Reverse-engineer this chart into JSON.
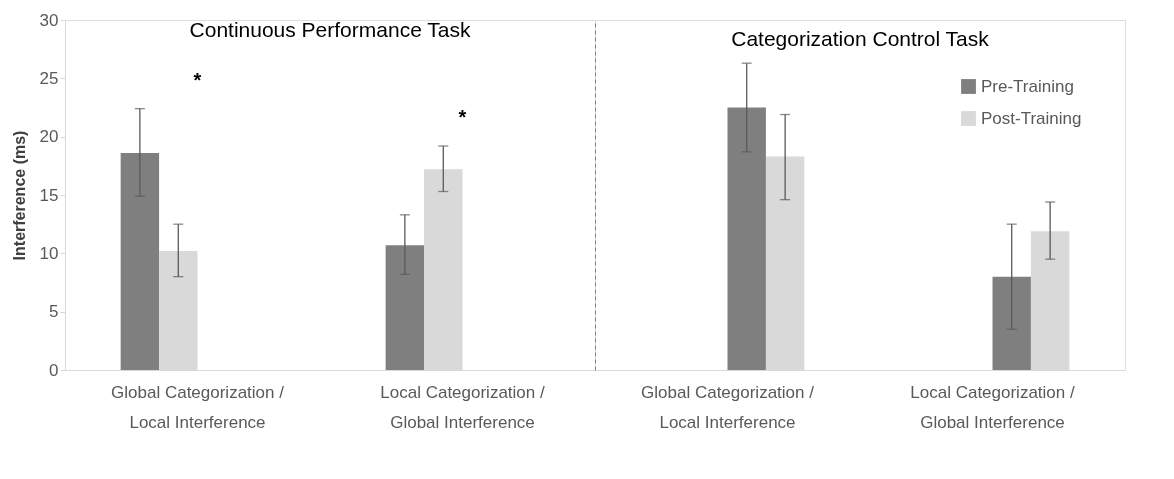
{
  "chart_data": [
    {
      "type": "bar",
      "title": "Continuous Performance Task",
      "ylabel": "Interference (ms)",
      "categories": [
        "Global Categorization /\nLocal Interference",
        "Local Categorization /\nGlobal Interference"
      ],
      "series": [
        {
          "name": "Pre-Training",
          "color": "#7f7f7f",
          "values": [
            18.6,
            10.7
          ],
          "errors": [
            [
              14.9,
              22.4
            ],
            [
              8.2,
              13.3
            ]
          ]
        },
        {
          "name": "Post-Training",
          "color": "#d9d9d9",
          "values": [
            10.2,
            17.2
          ],
          "errors": [
            [
              8.0,
              12.5
            ],
            [
              15.3,
              19.2
            ]
          ]
        }
      ],
      "annotations": [
        "*",
        "*"
      ],
      "ylim": [
        0,
        30
      ],
      "yticks": [
        0,
        5,
        10,
        15,
        20,
        25,
        30
      ],
      "grid": false,
      "legend": "top right"
    },
    {
      "type": "bar",
      "title": "Categorization Control Task",
      "categories": [
        "Global Categorization /\nLocal Interference",
        "Local Categorization /\nGlobal Interference"
      ],
      "series": [
        {
          "color": "#7f7f7f",
          "values": [
            22.5,
            8.0
          ],
          "errors": [
            [
              18.7,
              26.3
            ],
            [
              3.5,
              12.5
            ]
          ]
        },
        {
          "color": "#d9d9d9",
          "values": [
            18.3,
            11.9
          ],
          "errors": [
            [
              14.6,
              21.9
            ],
            [
              9.5,
              14.4
            ]
          ]
        }
      ],
      "ylim": [
        0,
        30
      ],
      "yticks": [
        0,
        5,
        10,
        15,
        20,
        25,
        30
      ],
      "grid": false,
      "tick_labels": "x"
    }
  ]
}
